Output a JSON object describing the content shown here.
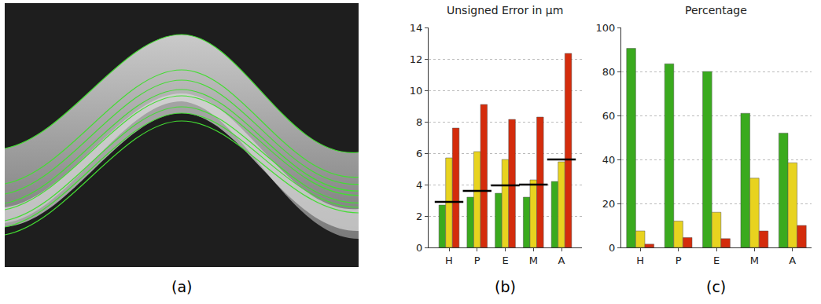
{
  "chart_data": [
    {
      "type": "image",
      "label": "(a)"
    },
    {
      "type": "bar",
      "title": "Unsigned Error in μm",
      "label": "(b)",
      "categories": [
        "H",
        "P",
        "E",
        "M",
        "A"
      ],
      "ylim": [
        0,
        14
      ],
      "yticks": [
        0,
        2,
        4,
        6,
        8,
        10,
        12,
        14
      ],
      "grid": true,
      "series": [
        {
          "color": "#3aaa1e",
          "values": [
            2.7,
            3.2,
            3.45,
            3.2,
            4.2
          ]
        },
        {
          "color": "#e8d31f",
          "values": [
            5.7,
            6.1,
            5.6,
            4.3,
            5.45
          ]
        },
        {
          "color": "#d42c0c",
          "values": [
            7.6,
            9.1,
            8.15,
            8.3,
            12.35
          ]
        },
        {
          "type": "scatter",
          "marker": "line-ew",
          "color": "#000000",
          "values": [
            2.9,
            3.6,
            3.95,
            4.0,
            5.6
          ]
        }
      ]
    },
    {
      "type": "bar",
      "title": "Percentage",
      "label": "(c)",
      "categories": [
        "H",
        "P",
        "E",
        "M",
        "A"
      ],
      "ylim": [
        0,
        100
      ],
      "yticks": [
        0,
        20,
        40,
        60,
        80,
        100
      ],
      "grid": true,
      "series": [
        {
          "color": "#3aaa1e",
          "values": [
            90.5,
            83.5,
            80,
            61,
            52
          ]
        },
        {
          "color": "#e8d31f",
          "values": [
            7.5,
            12,
            16,
            31.5,
            38.5
          ]
        },
        {
          "color": "#d42c0c",
          "values": [
            1.5,
            4.5,
            4,
            7.5,
            10
          ]
        }
      ]
    }
  ]
}
